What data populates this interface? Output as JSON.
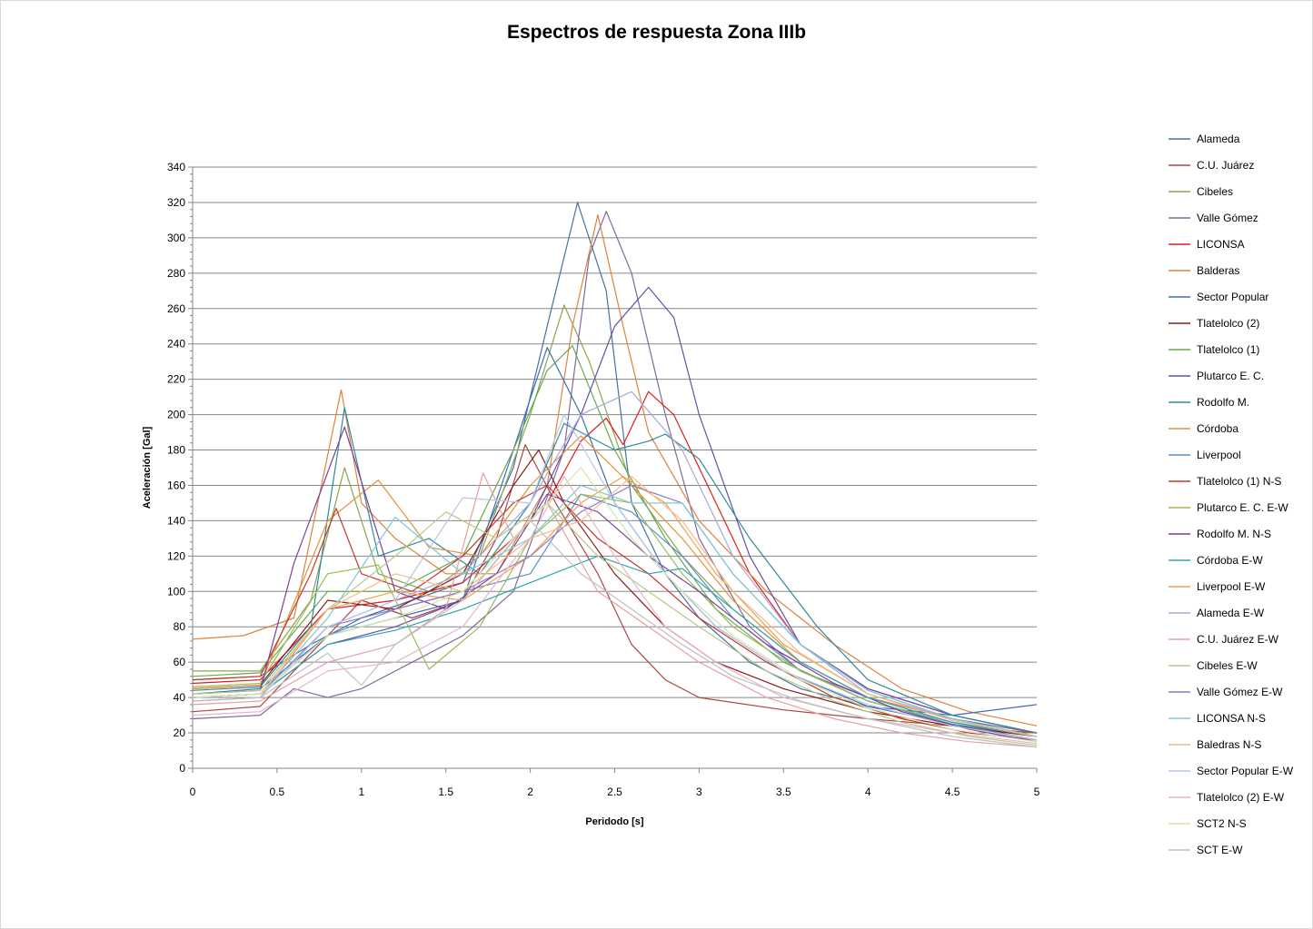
{
  "chart_data": {
    "type": "line",
    "title": "Espectros de respuesta Zona IIIb",
    "xlabel": "Peridodo [s]",
    "ylabel": "Aceleración [Gal]",
    "xlim": [
      0,
      5
    ],
    "ylim": [
      0,
      340
    ],
    "xticks": [
      0,
      0.5,
      1,
      1.5,
      2,
      2.5,
      3,
      3.5,
      4,
      4.5,
      5
    ],
    "xtick_labels": [
      "0",
      "0.5",
      "1",
      "1.5",
      "2",
      "2.5",
      "3",
      "3.5",
      "4",
      "4.5",
      "5"
    ],
    "yticks": [
      0,
      20,
      40,
      60,
      80,
      100,
      120,
      140,
      160,
      180,
      200,
      220,
      240,
      260,
      280,
      300,
      320,
      340
    ],
    "ytick_labels": [
      "0",
      "20",
      "40",
      "60",
      "80",
      "100",
      "120",
      "140",
      "160",
      "180",
      "200",
      "220",
      "240",
      "260",
      "280",
      "300",
      "320",
      "340"
    ],
    "grid": "horizontal",
    "legend_position": "right",
    "series": [
      {
        "name": "Alameda",
        "color": "#4572a7",
        "x": [
          0,
          0.4,
          0.7,
          1.0,
          1.3,
          1.6,
          1.9,
          2.1,
          2.28,
          2.45,
          2.6,
          2.8,
          3.0,
          3.3,
          3.6,
          4.0,
          4.5,
          5.0
        ],
        "y": [
          50,
          52,
          70,
          85,
          95,
          105,
          170,
          250,
          320,
          270,
          150,
          110,
          85,
          60,
          45,
          35,
          25,
          18
        ]
      },
      {
        "name": "C.U. Juárez",
        "color": "#aa4643",
        "x": [
          0,
          0.4,
          0.7,
          1.0,
          1.3,
          1.6,
          1.8,
          1.97,
          2.15,
          2.4,
          2.6,
          2.8,
          3.0,
          3.5,
          4.0,
          4.5,
          5.0
        ],
        "y": [
          32,
          35,
          65,
          95,
          85,
          95,
          130,
          183,
          150,
          110,
          70,
          50,
          40,
          33,
          28,
          24,
          20
        ]
      },
      {
        "name": "Cibeles",
        "color": "#89a54e",
        "x": [
          0,
          0.4,
          0.7,
          0.9,
          1.1,
          1.4,
          1.7,
          2.0,
          2.2,
          2.35,
          2.6,
          2.9,
          3.2,
          3.6,
          4.0,
          4.5,
          5.0
        ],
        "y": [
          55,
          55,
          95,
          170,
          110,
          100,
          120,
          200,
          262,
          230,
          160,
          120,
          90,
          60,
          40,
          28,
          18
        ]
      },
      {
        "name": "Valle Gómez",
        "color": "#80699b",
        "x": [
          0,
          0.4,
          0.6,
          0.8,
          1.0,
          1.3,
          1.6,
          1.9,
          2.2,
          2.35,
          2.45,
          2.6,
          2.8,
          3.0,
          3.3,
          3.6,
          4.0,
          4.5,
          5.0
        ],
        "y": [
          28,
          30,
          45,
          40,
          45,
          60,
          75,
          100,
          180,
          290,
          315,
          280,
          200,
          130,
          80,
          55,
          40,
          28,
          20
        ]
      },
      {
        "name": "LICONSA",
        "color": "#e41a1c",
        "x": [
          0,
          0.4,
          0.8,
          1.2,
          1.6,
          1.9,
          2.1,
          2.3,
          2.45,
          2.55,
          2.7,
          2.85,
          3.0,
          3.3,
          3.6,
          4.0,
          4.5,
          5.0
        ],
        "y": [
          48,
          50,
          90,
          95,
          105,
          130,
          150,
          185,
          198,
          183,
          213,
          200,
          170,
          110,
          70,
          45,
          30,
          20
        ]
      },
      {
        "name": "Balderas",
        "color": "#db843d",
        "x": [
          0,
          0.3,
          0.6,
          0.88,
          1.0,
          1.2,
          1.5,
          1.8,
          2.1,
          2.25,
          2.4,
          2.55,
          2.7,
          3.0,
          3.4,
          3.8,
          4.2,
          4.6,
          5.0
        ],
        "y": [
          73,
          75,
          85,
          214,
          150,
          130,
          110,
          110,
          160,
          250,
          313,
          250,
          190,
          140,
          100,
          70,
          45,
          32,
          24
        ]
      },
      {
        "name": "Sector Popular",
        "color": "#3d6fb5",
        "x": [
          0,
          0.4,
          0.8,
          1.2,
          1.6,
          1.9,
          2.1,
          2.3,
          2.5,
          2.8,
          3.1,
          3.5,
          4.0,
          4.5,
          5.0
        ],
        "y": [
          42,
          45,
          75,
          85,
          95,
          180,
          238,
          200,
          150,
          110,
          80,
          55,
          35,
          30,
          36
        ]
      },
      {
        "name": "Tlatelolco (2)",
        "color": "#8b1a1a",
        "x": [
          0,
          0.4,
          0.8,
          1.2,
          1.6,
          1.9,
          2.05,
          2.2,
          2.5,
          2.8,
          3.1,
          3.5,
          4.0,
          4.5,
          5.0
        ],
        "y": [
          45,
          47,
          95,
          90,
          110,
          160,
          180,
          150,
          110,
          80,
          60,
          45,
          32,
          24,
          18
        ]
      },
      {
        "name": "Tlatelolco (1)",
        "color": "#6aa84f",
        "x": [
          0,
          0.4,
          0.8,
          1.2,
          1.6,
          1.9,
          2.1,
          2.25,
          2.5,
          2.8,
          3.1,
          3.5,
          4.0,
          4.5,
          5.0
        ],
        "y": [
          52,
          54,
          100,
          100,
          120,
          180,
          225,
          239,
          180,
          130,
          90,
          60,
          38,
          26,
          18
        ]
      },
      {
        "name": "Plutarco E. C.",
        "color": "#674ea7",
        "x": [
          0,
          0.4,
          0.8,
          1.2,
          1.6,
          2.0,
          2.3,
          2.5,
          2.7,
          2.85,
          3.0,
          3.3,
          3.6,
          4.0,
          4.5,
          5.0
        ],
        "y": [
          40,
          42,
          70,
          80,
          95,
          140,
          200,
          250,
          272,
          255,
          200,
          120,
          70,
          45,
          30,
          20
        ]
      },
      {
        "name": "Rodolfo M.",
        "color": "#2e8b9a",
        "x": [
          0,
          0.4,
          0.7,
          0.9,
          1.1,
          1.4,
          1.7,
          2.0,
          2.2,
          2.5,
          2.7,
          2.8,
          3.0,
          3.3,
          3.7,
          4.0,
          4.5,
          5.0
        ],
        "y": [
          44,
          46,
          80,
          204,
          120,
          130,
          110,
          150,
          195,
          180,
          185,
          189,
          175,
          130,
          80,
          50,
          30,
          20
        ]
      },
      {
        "name": "Córdoba",
        "color": "#e69138",
        "x": [
          0,
          0.4,
          0.8,
          1.1,
          1.4,
          1.7,
          2.0,
          2.3,
          2.6,
          2.9,
          3.2,
          3.6,
          4.0,
          4.5,
          5.0
        ],
        "y": [
          45,
          47,
          140,
          163,
          125,
          120,
          160,
          188,
          160,
          130,
          95,
          60,
          40,
          28,
          18
        ]
      },
      {
        "name": "Liverpool",
        "color": "#5b8fc7",
        "x": [
          0,
          0.4,
          0.8,
          1.2,
          1.6,
          2.0,
          2.3,
          2.6,
          2.9,
          3.2,
          3.6,
          4.0,
          4.5,
          5.0
        ],
        "y": [
          40,
          42,
          75,
          90,
          100,
          110,
          155,
          145,
          120,
          85,
          55,
          38,
          25,
          16
        ]
      },
      {
        "name": "Tlatelolco (1) N-S",
        "color": "#c0392b",
        "x": [
          0,
          0.4,
          0.7,
          0.85,
          1.0,
          1.3,
          1.6,
          1.9,
          2.1,
          2.4,
          2.7,
          3.0,
          3.4,
          3.8,
          4.2,
          4.6,
          5.0
        ],
        "y": [
          50,
          52,
          110,
          147,
          110,
          100,
          120,
          150,
          160,
          130,
          110,
          85,
          60,
          40,
          28,
          20,
          16
        ]
      },
      {
        "name": "Plutarco E. C. E-W",
        "color": "#9bbb59",
        "x": [
          0,
          0.4,
          0.8,
          1.1,
          1.4,
          1.7,
          2.0,
          2.3,
          2.6,
          2.9,
          3.2,
          3.6,
          4.0,
          4.5,
          5.0
        ],
        "y": [
          46,
          48,
          110,
          115,
          56,
          80,
          130,
          155,
          150,
          110,
          80,
          55,
          38,
          26,
          18
        ]
      },
      {
        "name": "Rodolfo M. N-S",
        "color": "#7f3f98",
        "x": [
          0,
          0.4,
          0.6,
          0.9,
          1.2,
          1.5,
          1.8,
          2.1,
          2.4,
          2.7,
          3.0,
          3.4,
          3.8,
          4.2,
          4.6,
          5.0
        ],
        "y": [
          42,
          44,
          116,
          193,
          100,
          90,
          110,
          155,
          145,
          120,
          100,
          70,
          48,
          32,
          22,
          15
        ]
      },
      {
        "name": "Córdoba E-W",
        "color": "#31a2b5",
        "x": [
          0,
          0.4,
          0.8,
          1.2,
          1.6,
          2.0,
          2.4,
          2.7,
          2.9,
          3.2,
          3.6,
          4.0,
          4.5,
          5.0
        ],
        "y": [
          40,
          42,
          70,
          78,
          90,
          105,
          120,
          110,
          113,
          90,
          60,
          40,
          26,
          18
        ]
      },
      {
        "name": "Liverpool E-W",
        "color": "#f0a050",
        "x": [
          0,
          0.4,
          0.8,
          1.2,
          1.6,
          2.0,
          2.3,
          2.55,
          2.8,
          3.1,
          3.5,
          4.0,
          4.5,
          5.0
        ],
        "y": [
          38,
          40,
          90,
          100,
          95,
          120,
          150,
          165,
          150,
          110,
          70,
          42,
          28,
          18
        ]
      },
      {
        "name": "Alameda E-W",
        "color": "#a9a8d6",
        "x": [
          0,
          0.4,
          0.8,
          1.2,
          1.6,
          2.0,
          2.3,
          2.6,
          2.9,
          3.2,
          3.6,
          4.0,
          4.5,
          5.0
        ],
        "y": [
          38,
          40,
          80,
          95,
          110,
          150,
          200,
          213,
          180,
          120,
          70,
          42,
          28,
          18
        ]
      },
      {
        "name": "C.U. Juárez E-W",
        "color": "#e6a0a0",
        "x": [
          0,
          0.4,
          0.8,
          1.2,
          1.5,
          1.72,
          1.9,
          2.1,
          2.4,
          2.7,
          3.0,
          3.4,
          3.8,
          4.2,
          4.6,
          5.0
        ],
        "y": [
          36,
          38,
          60,
          70,
          90,
          167,
          130,
          150,
          100,
          80,
          60,
          40,
          28,
          20,
          15,
          12
        ]
      },
      {
        "name": "Cibeles E-W",
        "color": "#b6c98a",
        "x": [
          0,
          0.4,
          0.8,
          1.2,
          1.5,
          1.8,
          2.1,
          2.4,
          2.7,
          3.0,
          3.4,
          3.8,
          4.2,
          4.6,
          5.0
        ],
        "y": [
          42,
          44,
          90,
          120,
          145,
          130,
          150,
          120,
          100,
          80,
          55,
          38,
          26,
          18,
          13
        ]
      },
      {
        "name": "Valle Gómez E-W",
        "color": "#8d7cc3",
        "x": [
          0,
          0.4,
          0.8,
          1.2,
          1.6,
          2.0,
          2.3,
          2.6,
          2.9,
          3.2,
          3.6,
          4.0,
          4.5,
          5.0
        ],
        "y": [
          40,
          42,
          80,
          90,
          100,
          120,
          145,
          160,
          150,
          110,
          70,
          44,
          28,
          18
        ]
      },
      {
        "name": "LICONSA N-S",
        "color": "#7fc8d8",
        "x": [
          0,
          0.4,
          0.8,
          1.2,
          1.6,
          2.0,
          2.3,
          2.6,
          2.9,
          3.2,
          3.6,
          4.0,
          4.5,
          5.0
        ],
        "y": [
          40,
          42,
          85,
          142,
          110,
          130,
          160,
          150,
          150,
          110,
          70,
          44,
          28,
          18
        ]
      },
      {
        "name": "Baledras N-S",
        "color": "#f7b987",
        "x": [
          0,
          0.4,
          0.8,
          1.2,
          1.6,
          2.0,
          2.3,
          2.6,
          2.9,
          3.2,
          3.6,
          4.0,
          4.5,
          5.0
        ],
        "y": [
          40,
          42,
          90,
          110,
          100,
          130,
          140,
          165,
          140,
          100,
          65,
          42,
          27,
          18
        ]
      },
      {
        "name": "Sector Popular E-W",
        "color": "#b4c7e7",
        "x": [
          0,
          0.4,
          0.8,
          1.2,
          1.6,
          2.0,
          2.2,
          2.5,
          2.8,
          3.1,
          3.5,
          4.0,
          4.5,
          5.0
        ],
        "y": [
          38,
          40,
          80,
          95,
          153,
          150,
          200,
          150,
          110,
          80,
          55,
          36,
          24,
          16
        ]
      },
      {
        "name": "Tlatelolco (2) E-W",
        "color": "#e8b4c8",
        "x": [
          0,
          0.4,
          0.8,
          1.2,
          1.6,
          2.0,
          2.2,
          2.5,
          2.8,
          3.1,
          3.5,
          4.0,
          4.5,
          5.0
        ],
        "y": [
          30,
          32,
          55,
          60,
          80,
          130,
          165,
          120,
          80,
          60,
          40,
          28,
          20,
          14
        ]
      },
      {
        "name": "SCT2 N-S",
        "color": "#d7e4a8",
        "x": [
          0,
          0.4,
          0.8,
          1.2,
          1.6,
          2.0,
          2.3,
          2.6,
          2.9,
          3.2,
          3.6,
          4.0,
          4.5,
          5.0
        ],
        "y": [
          40,
          42,
          75,
          85,
          100,
          140,
          170,
          130,
          100,
          75,
          50,
          34,
          22,
          15
        ]
      },
      {
        "name": "SCT E-W",
        "color": "#c0c0c0",
        "x": [
          0,
          0.4,
          0.8,
          1.0,
          1.2,
          1.6,
          2.0,
          2.3,
          2.6,
          2.9,
          3.2,
          3.6,
          4.0,
          4.5,
          5.0
        ],
        "y": [
          38,
          40,
          65,
          47,
          70,
          95,
          140,
          110,
          90,
          70,
          52,
          38,
          28,
          18,
          12
        ]
      }
    ]
  }
}
